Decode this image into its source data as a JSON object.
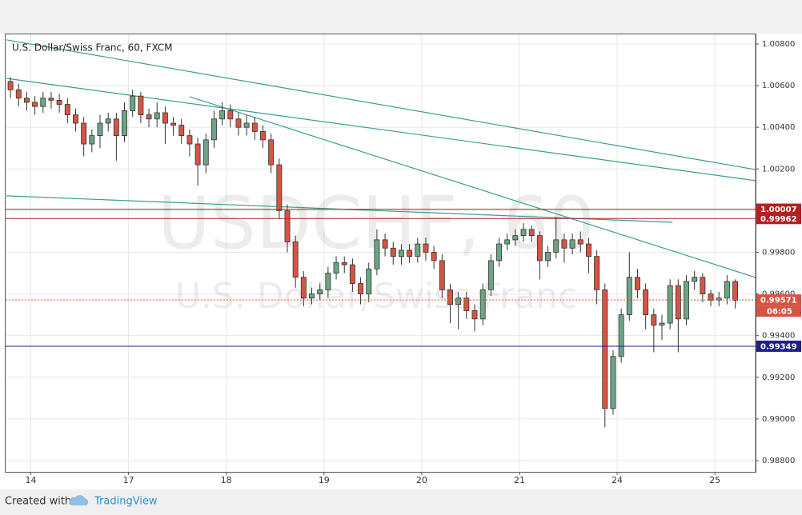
{
  "chart_data": {
    "type": "candlestick",
    "title": "U.S. Dollar/Swiss Franc, 60, FXCM",
    "watermark": "USDCHF, 60",
    "watermark_subtitle": "U.S. Dollar/Swiss Franc",
    "x": [
      -2.5,
      -1.5,
      -0.5,
      0.5,
      1.5,
      2.5,
      3.5,
      4.5,
      5.5,
      6.5,
      7.5,
      8.5,
      9.5,
      10.5,
      11.5,
      12.5,
      13.5,
      14.5,
      15.5,
      16.5,
      17.5,
      18.5,
      19.5,
      20.5,
      21.5,
      22.5,
      23.5,
      24.5,
      25.5,
      26.5,
      27.5,
      28.5,
      29.5,
      30.5,
      31.5,
      32.5,
      33.5,
      34.5,
      35.5,
      36.5,
      37.5,
      38.5,
      39.5,
      40.5,
      41.5,
      42.5,
      43.5,
      44.5,
      45.5,
      46.5,
      47.5,
      48.5,
      49.5,
      50.5,
      51.5,
      52.5,
      53.5,
      54.5,
      55.5,
      56.5,
      57.5,
      58.5,
      59.5,
      60.5,
      61.5,
      62.5,
      63.5,
      64.5,
      65.5,
      66.5,
      67.5,
      68.5,
      69.5,
      70.5,
      71.5,
      72.5,
      73.5,
      74.5,
      75.5,
      76.5,
      77.5,
      78.5,
      79.5,
      80.5,
      81.5,
      82.5,
      83.5,
      84.5,
      85.5,
      86.5
    ],
    "open": [
      1.0062,
      1.0058,
      1.0054,
      1.0052,
      1.005,
      1.0054,
      1.0053,
      1.0051,
      1.0046,
      1.0042,
      1.0032,
      1.0036,
      1.0042,
      1.0044,
      1.0036,
      1.0048,
      1.0055,
      1.0046,
      1.0044,
      1.0047,
      1.0042,
      1.0041,
      1.0036,
      1.0032,
      1.0022,
      1.0034,
      1.0044,
      1.0048,
      1.0044,
      1.004,
      1.0042,
      1.0038,
      1.0034,
      1.0022,
      1.0,
      0.9985,
      0.9968,
      0.9958,
      0.996,
      0.9962,
      0.997,
      0.9975,
      0.9974,
      0.9965,
      0.996,
      0.9972,
      0.9986,
      0.9982,
      0.9978,
      0.9981,
      0.9978,
      0.9984,
      0.998,
      0.9976,
      0.9962,
      0.9955,
      0.9958,
      0.9952,
      0.9948,
      0.9962,
      0.9976,
      0.9984,
      0.9986,
      0.9988,
      0.9991,
      0.9988,
      0.9976,
      0.998,
      0.9986,
      0.9982,
      0.9986,
      0.9984,
      0.9978,
      0.9962,
      0.9905,
      0.993,
      0.995,
      0.9968,
      0.9962,
      0.995,
      0.9945,
      0.9946,
      0.9964,
      0.9948,
      0.9966,
      0.9968,
      0.996,
      0.9957,
      0.9958,
      0.9966
    ],
    "high": [
      1.0064,
      1.0061,
      1.0057,
      1.0055,
      1.0057,
      1.0057,
      1.0056,
      1.0054,
      1.0049,
      1.0045,
      1.0039,
      1.0046,
      1.0047,
      1.0047,
      1.0052,
      1.0058,
      1.0057,
      1.0049,
      1.0052,
      1.005,
      1.0045,
      1.0044,
      1.0039,
      1.0035,
      1.0037,
      1.0048,
      1.0052,
      1.0051,
      1.0047,
      1.0046,
      1.0045,
      1.0041,
      1.0037,
      1.0025,
      1.0003,
      0.9988,
      0.9971,
      0.9963,
      0.9965,
      0.9973,
      0.9978,
      0.9978,
      0.9977,
      0.9968,
      0.9975,
      0.9991,
      0.9989,
      0.9985,
      0.9984,
      0.9984,
      0.9987,
      0.9987,
      0.9983,
      0.9979,
      0.9965,
      0.9961,
      0.9961,
      0.9955,
      0.9965,
      0.9979,
      0.9987,
      0.9989,
      0.9991,
      0.9994,
      0.9993,
      0.999,
      0.9983,
      0.9997,
      0.9989,
      0.9989,
      0.999,
      0.9987,
      0.9981,
      0.9965,
      0.9933,
      0.9953,
      0.998,
      0.9972,
      0.9965,
      0.9953,
      0.995,
      0.9967,
      0.9967,
      0.9969,
      0.9971,
      0.997,
      0.9962,
      0.9961,
      0.9969,
      0.9967
    ],
    "low": [
      1.0054,
      1.005,
      1.0048,
      1.0046,
      1.0047,
      1.0049,
      1.0047,
      1.0042,
      1.0038,
      1.0026,
      1.0028,
      1.003,
      1.0038,
      1.0024,
      1.0033,
      1.0045,
      1.0042,
      1.004,
      1.004,
      1.0032,
      1.0036,
      1.0032,
      1.0026,
      1.0012,
      1.0018,
      1.003,
      1.0041,
      1.004,
      1.0036,
      1.0036,
      1.0034,
      1.003,
      1.0018,
      0.9996,
      0.998,
      0.9963,
      0.9954,
      0.9955,
      0.9957,
      0.9958,
      0.9967,
      0.997,
      0.9961,
      0.9955,
      0.9956,
      0.9969,
      0.9978,
      0.9974,
      0.9974,
      0.9975,
      0.9975,
      0.9976,
      0.9972,
      0.9958,
      0.9946,
      0.9943,
      0.9948,
      0.9942,
      0.9945,
      0.9959,
      0.9973,
      0.9981,
      0.9983,
      0.9985,
      0.9985,
      0.9967,
      0.9973,
      0.9977,
      0.9975,
      0.9979,
      0.998,
      0.997,
      0.9955,
      0.9896,
      0.9902,
      0.9927,
      0.9947,
      0.9958,
      0.9943,
      0.9932,
      0.9938,
      0.9943,
      0.9932,
      0.9945,
      0.9962,
      0.9956,
      0.9954,
      0.9954,
      0.9955,
      0.9953
    ],
    "close": [
      1.0058,
      1.0054,
      1.0052,
      1.005,
      1.0054,
      1.0053,
      1.0051,
      1.0046,
      1.0042,
      1.0032,
      1.0036,
      1.0042,
      1.0044,
      1.0036,
      1.0048,
      1.0055,
      1.0046,
      1.0044,
      1.0047,
      1.0042,
      1.0041,
      1.0036,
      1.0032,
      1.0022,
      1.0034,
      1.0044,
      1.0048,
      1.0044,
      1.004,
      1.0042,
      1.0038,
      1.0034,
      1.0022,
      1.0,
      0.9985,
      0.9968,
      0.9958,
      0.996,
      0.9962,
      0.997,
      0.9975,
      0.9974,
      0.9965,
      0.996,
      0.9972,
      0.9986,
      0.9982,
      0.9978,
      0.9981,
      0.9978,
      0.9984,
      0.998,
      0.9976,
      0.9962,
      0.9955,
      0.9958,
      0.9952,
      0.9948,
      0.9962,
      0.9976,
      0.9984,
      0.9986,
      0.9988,
      0.9991,
      0.9988,
      0.9976,
      0.998,
      0.9986,
      0.9982,
      0.9986,
      0.9984,
      0.9978,
      0.9962,
      0.9905,
      0.993,
      0.995,
      0.9968,
      0.9962,
      0.995,
      0.9945,
      0.9946,
      0.9964,
      0.9948,
      0.9966,
      0.9968,
      0.996,
      0.9957,
      0.9958,
      0.9966,
      0.9957
    ],
    "up_color": "#6ba583",
    "down_color": "#d75442",
    "xlim": [
      -3,
      89
    ],
    "xticks": [
      {
        "value": 0,
        "label": "14"
      },
      {
        "value": 12,
        "label": "17"
      },
      {
        "value": 24,
        "label": "18"
      },
      {
        "value": 36,
        "label": "19"
      },
      {
        "value": 48,
        "label": "20"
      },
      {
        "value": 60,
        "label": "21"
      },
      {
        "value": 72,
        "label": "24"
      },
      {
        "value": 84,
        "label": "25"
      }
    ],
    "ylim": [
      0.98746,
      1.0085
    ],
    "yticks": [
      {
        "value": 0.988,
        "label": "0.98800"
      },
      {
        "value": 0.99,
        "label": "0.99000"
      },
      {
        "value": 0.992,
        "label": "0.99200"
      },
      {
        "value": 0.994,
        "label": "0.99400"
      },
      {
        "value": 0.996,
        "label": "0.99600"
      },
      {
        "value": 0.998,
        "label": "0.99800"
      },
      {
        "value": 1.0,
        "label": "1.00000"
      },
      {
        "value": 1.002,
        "label": "1.00200"
      },
      {
        "value": 1.004,
        "label": "1.00400"
      },
      {
        "value": 1.006,
        "label": "1.00600"
      },
      {
        "value": 1.008,
        "label": "1.00800"
      }
    ],
    "grid": true,
    "trendlines": [
      {
        "x": [
          -3,
          89
        ],
        "y": [
          1.0082,
          1.00197
        ],
        "color": "#3a9e8f"
      },
      {
        "x": [
          -3,
          89
        ],
        "y": [
          1.00635,
          1.00144
        ],
        "color": "#3a9e8f"
      },
      {
        "x": [
          19.5,
          89
        ],
        "y": [
          1.00547,
          0.99679
        ],
        "color": "#3a9e8f"
      },
      {
        "x": [
          -3,
          78.8
        ],
        "y": [
          1.00071,
          0.99944
        ],
        "color": "#3a9e8f"
      }
    ],
    "hlines": [
      {
        "value": 1.00007,
        "color": "#b22222",
        "style": "solid"
      },
      {
        "value": 0.99962,
        "color": "#b22222",
        "style": "solid"
      },
      {
        "value": 0.99571,
        "color": "#d75442",
        "style": "dotted",
        "countdown": "06:05"
      },
      {
        "value": 0.99349,
        "color": "#1f1f8f",
        "style": "solid"
      }
    ]
  },
  "footer": {
    "created_with": "Created with",
    "brand": "TradingView"
  }
}
